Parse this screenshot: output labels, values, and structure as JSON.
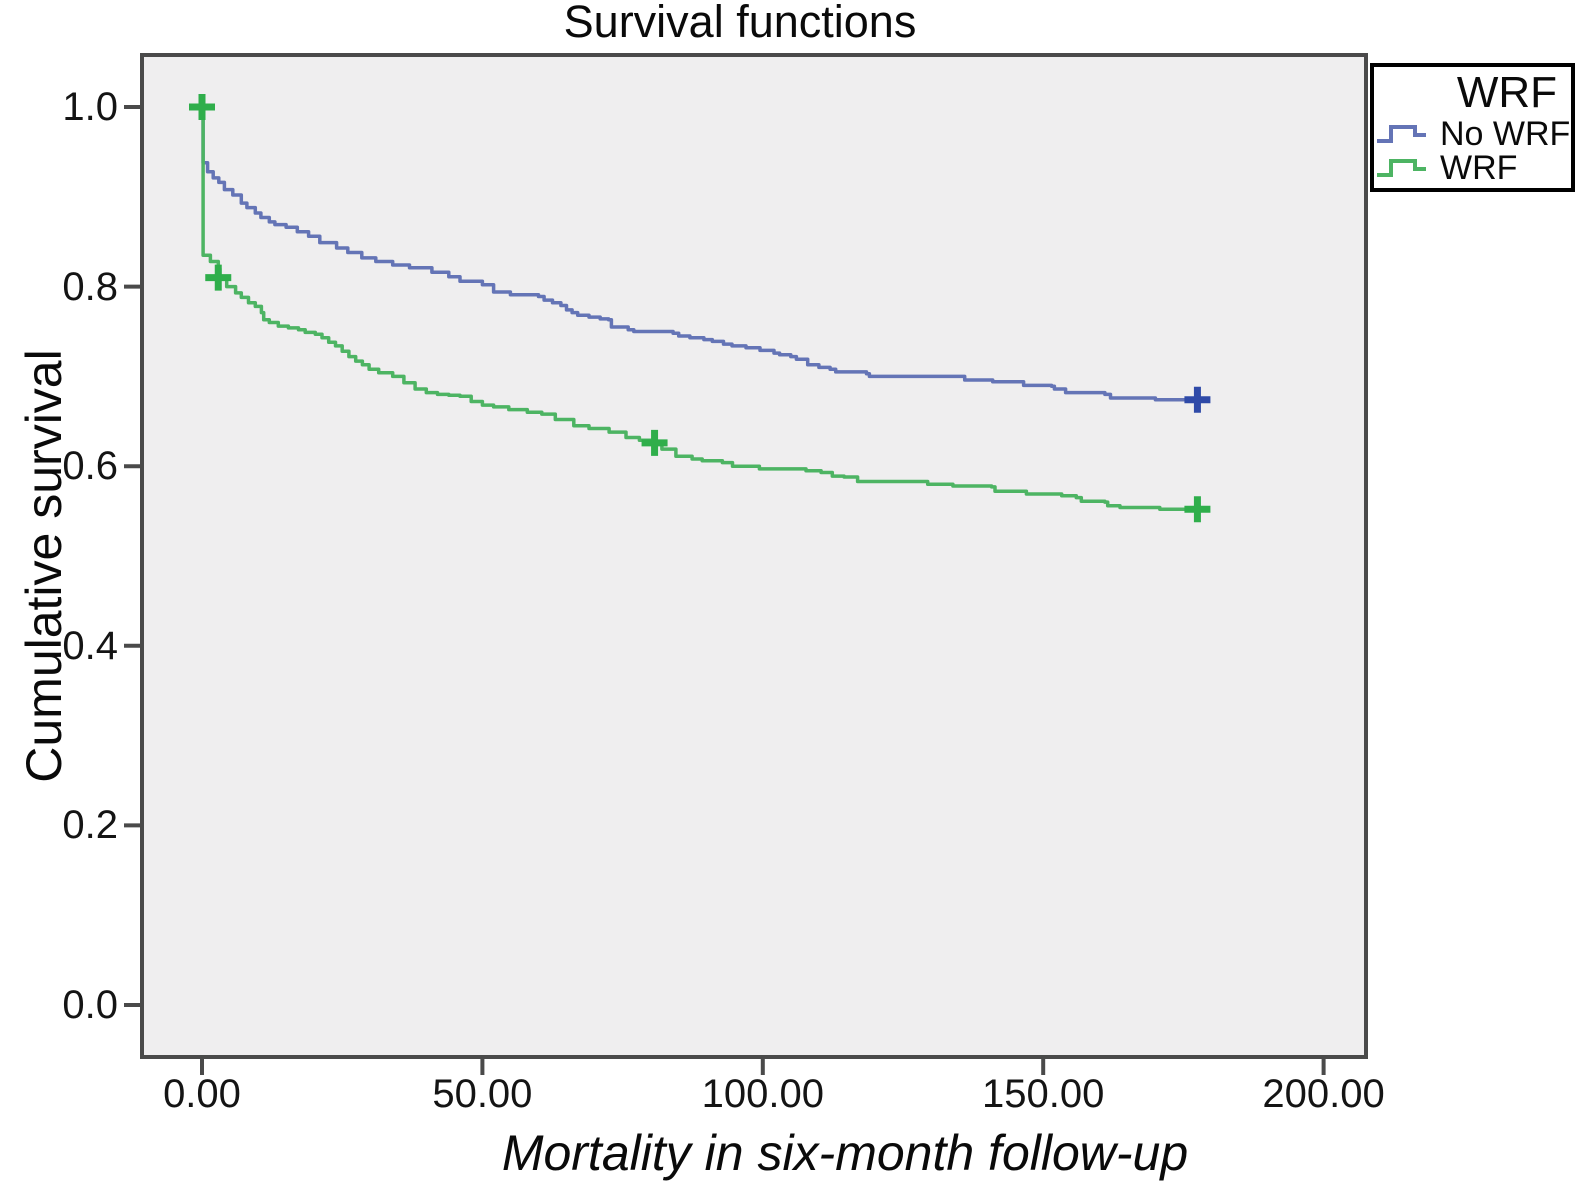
{
  "chart": {
    "title": "Survival functions",
    "x_axis": {
      "label": "Mortality in six-month follow-up",
      "ticks": [
        "0.00",
        "50.00",
        "100.00",
        "150.00",
        "200.00"
      ],
      "tick_values": [
        0,
        50,
        100,
        150,
        200
      ]
    },
    "y_axis": {
      "label": "Cumulative survival",
      "ticks": [
        "0.0",
        "0.2",
        "0.4",
        "0.6",
        "0.8",
        "1.0"
      ],
      "tick_values": [
        0,
        0.2,
        0.4,
        0.6,
        0.8,
        1.0
      ]
    },
    "legend": {
      "title": "WRF",
      "entries": [
        {
          "label": "No WRF",
          "color": "#6474b6"
        },
        {
          "label": "WRF",
          "color": "#4db463"
        }
      ]
    },
    "colors": {
      "plot_background": "#efeeef",
      "frame": "#4a4a4a",
      "no_wrf_line": "#6474b6",
      "no_wrf_censor": "#2f4aa8",
      "wrf_line": "#4db463",
      "wrf_censor": "#2fae4b"
    }
  },
  "chart_data": {
    "type": "line",
    "subtype": "kaplan-meier-step",
    "title": "Survival functions",
    "xlabel": "Mortality in six-month follow-up",
    "ylabel": "Cumulative survival",
    "xlim": [
      -11,
      207
    ],
    "ylim": [
      -0.06,
      1.06
    ],
    "grid": false,
    "legend_position": "outside-top-right",
    "x_ticks": [
      0,
      50,
      100,
      150,
      200
    ],
    "y_ticks": [
      0,
      0.2,
      0.4,
      0.6,
      0.8,
      1.0
    ],
    "series": [
      {
        "name": "No WRF",
        "color": "#6474b6",
        "censor_color": "#2f4aa8",
        "points": [
          [
            0,
            1.0
          ],
          [
            0.2,
            0.938
          ],
          [
            1,
            0.928
          ],
          [
            2,
            0.921
          ],
          [
            3,
            0.916
          ],
          [
            4,
            0.908
          ],
          [
            5.5,
            0.902
          ],
          [
            7,
            0.893
          ],
          [
            8,
            0.888
          ],
          [
            9.5,
            0.882
          ],
          [
            10.5,
            0.877
          ],
          [
            12,
            0.872
          ],
          [
            13,
            0.869
          ],
          [
            15,
            0.866
          ],
          [
            17,
            0.861
          ],
          [
            19,
            0.856
          ],
          [
            21,
            0.849
          ],
          [
            24,
            0.843
          ],
          [
            26,
            0.838
          ],
          [
            28.5,
            0.832
          ],
          [
            31,
            0.828
          ],
          [
            34,
            0.824
          ],
          [
            37,
            0.821
          ],
          [
            41,
            0.816
          ],
          [
            44,
            0.811
          ],
          [
            46,
            0.806
          ],
          [
            50,
            0.802
          ],
          [
            52,
            0.794
          ],
          [
            55,
            0.791
          ],
          [
            60,
            0.789
          ],
          [
            61,
            0.785
          ],
          [
            62.5,
            0.782
          ],
          [
            64,
            0.779
          ],
          [
            65,
            0.774
          ],
          [
            66,
            0.771
          ],
          [
            67,
            0.768
          ],
          [
            69,
            0.766
          ],
          [
            71,
            0.764
          ],
          [
            72.5,
            0.763
          ],
          [
            73,
            0.755
          ],
          [
            76,
            0.752
          ],
          [
            77,
            0.75
          ],
          [
            84,
            0.748
          ],
          [
            85,
            0.745
          ],
          [
            87,
            0.743
          ],
          [
            89.5,
            0.741
          ],
          [
            91,
            0.739
          ],
          [
            93,
            0.736
          ],
          [
            94.5,
            0.734
          ],
          [
            97,
            0.732
          ],
          [
            99.5,
            0.729
          ],
          [
            102,
            0.726
          ],
          [
            103,
            0.724
          ],
          [
            105,
            0.722
          ],
          [
            106,
            0.719
          ],
          [
            108,
            0.713
          ],
          [
            110,
            0.71
          ],
          [
            112,
            0.708
          ],
          [
            113,
            0.705
          ],
          [
            118.5,
            0.703
          ],
          [
            119,
            0.7
          ],
          [
            135,
            0.7
          ],
          [
            136,
            0.696
          ],
          [
            140.5,
            0.696
          ],
          [
            141,
            0.694
          ],
          [
            146,
            0.694
          ],
          [
            146.5,
            0.69
          ],
          [
            151.5,
            0.689
          ],
          [
            152,
            0.686
          ],
          [
            154,
            0.682
          ],
          [
            161,
            0.68
          ],
          [
            162,
            0.676
          ],
          [
            170,
            0.674
          ],
          [
            177.5,
            0.674
          ]
        ],
        "censors": [
          [
            177.5,
            0.674
          ]
        ]
      },
      {
        "name": "WRF",
        "color": "#4db463",
        "censor_color": "#2fae4b",
        "points": [
          [
            0,
            1.0
          ],
          [
            0.2,
            0.835
          ],
          [
            1.5,
            0.828
          ],
          [
            2.9,
            0.82
          ],
          [
            3.2,
            0.81
          ],
          [
            4.4,
            0.8
          ],
          [
            6,
            0.793
          ],
          [
            7,
            0.788
          ],
          [
            8.3,
            0.782
          ],
          [
            9.5,
            0.778
          ],
          [
            10.6,
            0.771
          ],
          [
            11,
            0.763
          ],
          [
            12,
            0.76
          ],
          [
            13.6,
            0.756
          ],
          [
            15.4,
            0.754
          ],
          [
            17.2,
            0.752
          ],
          [
            18.4,
            0.749
          ],
          [
            20.2,
            0.747
          ],
          [
            21.4,
            0.743
          ],
          [
            22.6,
            0.738
          ],
          [
            23.8,
            0.734
          ],
          [
            25,
            0.728
          ],
          [
            26.2,
            0.722
          ],
          [
            27.4,
            0.717
          ],
          [
            28.6,
            0.713
          ],
          [
            29.8,
            0.708
          ],
          [
            31.5,
            0.704
          ],
          [
            34,
            0.7
          ],
          [
            36,
            0.693
          ],
          [
            38,
            0.686
          ],
          [
            40,
            0.682
          ],
          [
            42,
            0.68
          ],
          [
            44,
            0.679
          ],
          [
            46,
            0.678
          ],
          [
            48,
            0.672
          ],
          [
            50,
            0.668
          ],
          [
            52,
            0.666
          ],
          [
            54.7,
            0.663
          ],
          [
            58,
            0.66
          ],
          [
            60.6,
            0.658
          ],
          [
            63,
            0.652
          ],
          [
            66.3,
            0.645
          ],
          [
            69,
            0.642
          ],
          [
            72.6,
            0.638
          ],
          [
            75.6,
            0.632
          ],
          [
            78,
            0.629
          ],
          [
            80.7,
            0.626
          ],
          [
            82,
            0.619
          ],
          [
            84.5,
            0.611
          ],
          [
            87.4,
            0.608
          ],
          [
            89.2,
            0.606
          ],
          [
            92.8,
            0.604
          ],
          [
            94.6,
            0.6
          ],
          [
            99.4,
            0.597
          ],
          [
            107.7,
            0.595
          ],
          [
            110.4,
            0.593
          ],
          [
            112.4,
            0.589
          ],
          [
            114.5,
            0.588
          ],
          [
            116.9,
            0.583
          ],
          [
            129.2,
            0.583
          ],
          [
            129.4,
            0.58
          ],
          [
            133.9,
            0.578
          ],
          [
            140.8,
            0.577
          ],
          [
            141.4,
            0.572
          ],
          [
            146.4,
            0.572
          ],
          [
            147,
            0.569
          ],
          [
            152.6,
            0.569
          ],
          [
            153.3,
            0.567
          ],
          [
            155.9,
            0.565
          ],
          [
            156.8,
            0.561
          ],
          [
            161,
            0.56
          ],
          [
            161.5,
            0.556
          ],
          [
            163.7,
            0.554
          ],
          [
            170.8,
            0.552
          ],
          [
            177.5,
            0.552
          ]
        ],
        "censors": [
          [
            0,
            1.0
          ],
          [
            2.9,
            0.81
          ],
          [
            80.7,
            0.626
          ],
          [
            177.5,
            0.552
          ]
        ]
      }
    ]
  }
}
